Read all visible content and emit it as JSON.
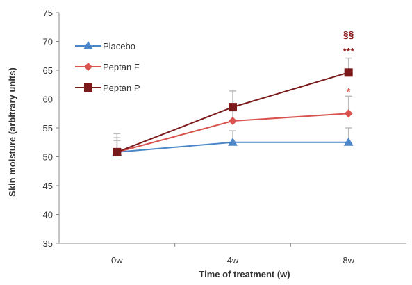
{
  "chart_data": {
    "type": "line",
    "title": "",
    "xlabel": "Time of treatment (w)",
    "ylabel": "Skin moisture (arbitrary units)",
    "categories": [
      "0w",
      "4w",
      "8w"
    ],
    "ylim": [
      35,
      75
    ],
    "yticks": [
      35,
      40,
      45,
      50,
      55,
      60,
      65,
      70,
      75
    ],
    "grid": false,
    "legend_position": "top-left",
    "series": [
      {
        "name": "Placebo",
        "color": "#4a86c8",
        "marker": "triangle",
        "values": [
          50.8,
          52.5,
          52.5
        ],
        "errors": [
          2.0,
          2.0,
          2.5
        ]
      },
      {
        "name": "Peptan F",
        "color": "#d9534f",
        "marker": "diamond",
        "values": [
          50.8,
          56.2,
          57.5
        ],
        "errors": [
          2.5,
          2.5,
          3.0
        ]
      },
      {
        "name": "Peptan P",
        "color": "#7a1a1a",
        "marker": "square",
        "values": [
          50.8,
          58.6,
          64.6
        ],
        "errors": [
          3.2,
          2.8,
          2.5
        ]
      }
    ],
    "annotations": [
      {
        "text": "§§",
        "category": "8w",
        "y": 71.2,
        "color": "#8b1a1a"
      },
      {
        "text": "***",
        "category": "8w",
        "y": 68.3,
        "color": "#8b1a1a"
      },
      {
        "text": "*",
        "category": "8w",
        "y": 61.3,
        "color": "#d9534f"
      }
    ]
  }
}
